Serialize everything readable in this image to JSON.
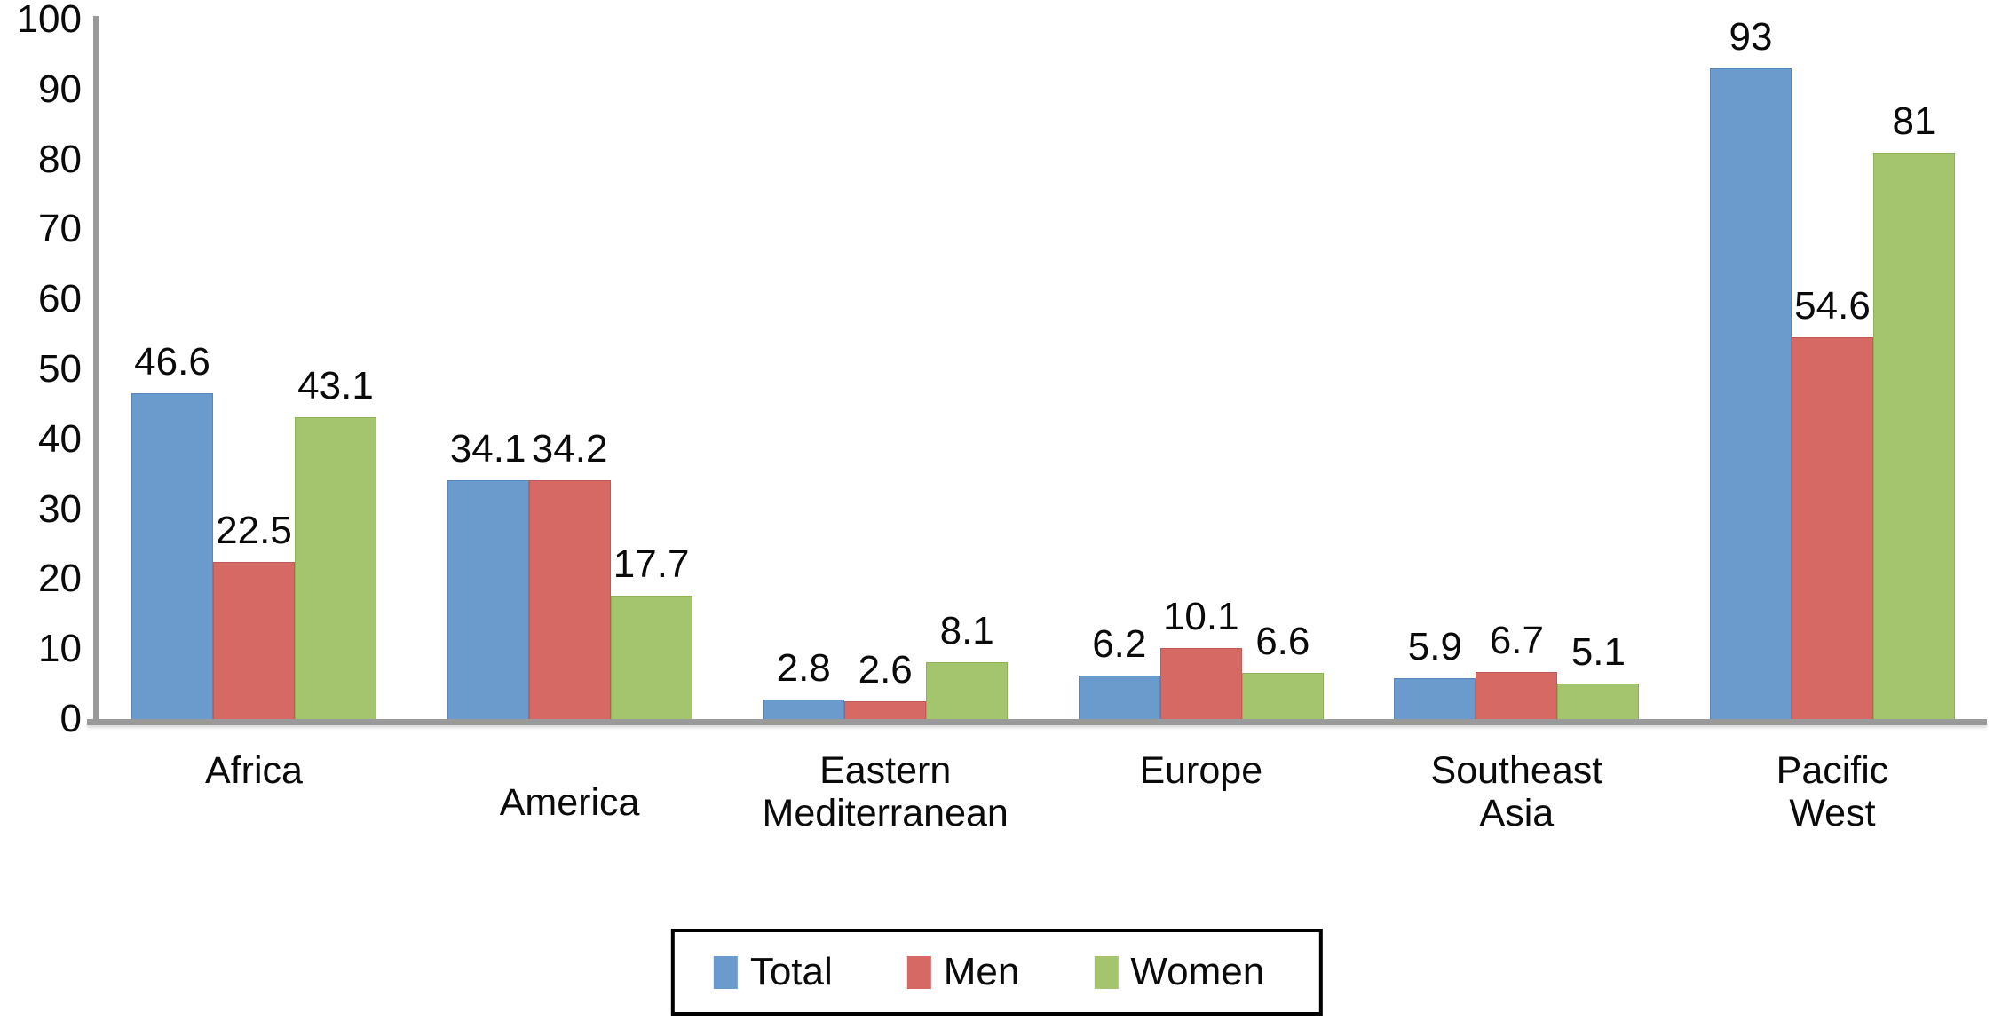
{
  "chart_data": {
    "type": "bar",
    "categories": [
      "Africa",
      "America",
      "Eastern\nMediterranean",
      "Europe",
      "Southeast\nAsia",
      "Pacific\nWest"
    ],
    "series": [
      {
        "name": "Total",
        "color": "#6b9acd",
        "border_color": "#5b86ba",
        "values": [
          46.6,
          34.1,
          2.8,
          6.2,
          5.9,
          93
        ]
      },
      {
        "name": "Men",
        "color": "#d66964",
        "border_color": "#c05a55",
        "values": [
          22.5,
          34.2,
          2.6,
          10.1,
          6.7,
          54.6
        ]
      },
      {
        "name": "Women",
        "color": "#a4c56e",
        "border_color": "#8fb257",
        "values": [
          43.1,
          17.7,
          8.1,
          6.6,
          5.1,
          81
        ]
      }
    ],
    "y_ticks": [
      0,
      10,
      20,
      30,
      40,
      50,
      60,
      70,
      80,
      90,
      100
    ],
    "ylim": [
      0,
      100
    ],
    "title": "",
    "xlabel": "",
    "ylabel": "",
    "grid": false,
    "legend_position": "bottom",
    "bar_value_labels_shown": true,
    "axis_color": "#9a9a9a",
    "text_color": "#0a0a0a",
    "background_color": "#ffffff"
  }
}
